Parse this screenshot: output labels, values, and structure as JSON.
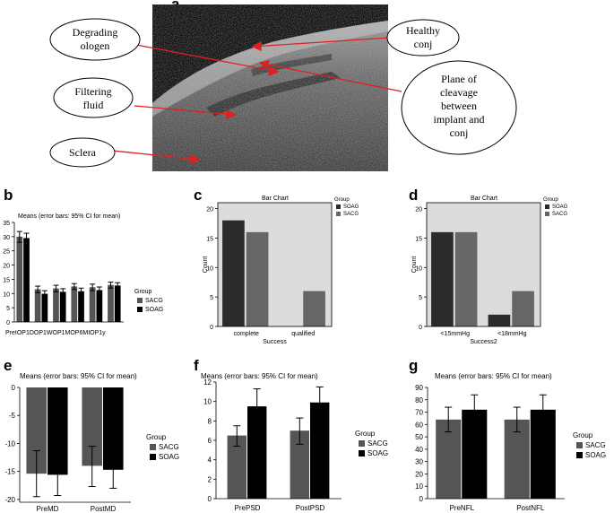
{
  "figure": {
    "panel_letters": [
      "a",
      "b",
      "c",
      "d",
      "e",
      "f",
      "g"
    ],
    "image_labels": {
      "degrading_collagen": [
        "Degrading",
        "ologen"
      ],
      "filtering_fluid": [
        "Filtering",
        "fluid"
      ],
      "sclera": [
        "Sclera"
      ],
      "healthy_conj": [
        "Healthy",
        "conj"
      ],
      "plane_of_cleavage": [
        "Plane of",
        "cleavage",
        "between",
        "implant and",
        "conj"
      ]
    }
  },
  "colors": {
    "SACG": "#555555",
    "SOAG": "#000000",
    "SOAG_spss": "#2b2b2b",
    "SACG_spss": "#666666",
    "spss_plot_bg": "#dcdcdc",
    "callout_arrow": "#e02020"
  },
  "chart_data": [
    {
      "panel": "b",
      "type": "bar",
      "title": "Means  (error bars: 95% CI for mean)",
      "categories": [
        "PreIOP",
        "IOP1D",
        "IOP1W",
        "IOP1M",
        "IOP6M",
        "IOP1y"
      ],
      "category_label_text": "PreIOP1DOP1WOP1MOP6MIOP1y",
      "series": [
        {
          "name": "SACG",
          "values": [
            30,
            11.5,
            11.8,
            12.5,
            12.2,
            13.0
          ],
          "ci": [
            [
              28.0,
              31.8
            ],
            [
              10.3,
              12.6
            ],
            [
              10.6,
              12.9
            ],
            [
              11.4,
              13.5
            ],
            [
              11.0,
              13.3
            ],
            [
              11.9,
              14.0
            ]
          ]
        },
        {
          "name": "SOAG",
          "values": [
            29.5,
            9.9,
            10.6,
            10.8,
            11.2,
            12.8
          ],
          "ci": [
            [
              27.6,
              31.2
            ],
            [
              8.7,
              11.0
            ],
            [
              9.4,
              11.7
            ],
            [
              9.6,
              11.9
            ],
            [
              10.0,
              12.3
            ],
            [
              11.7,
              13.8
            ]
          ]
        }
      ],
      "yticks": [
        0,
        5,
        10,
        15,
        20,
        25,
        30,
        35
      ],
      "ylim": [
        0,
        35
      ],
      "legend_title": "Group",
      "legend": [
        "SACG",
        "SOAG"
      ]
    },
    {
      "panel": "c",
      "type": "bar",
      "title": "Bar Chart",
      "categories": [
        "complete",
        "qualified"
      ],
      "series": [
        {
          "name": "SOAG",
          "values": [
            18,
            0
          ]
        },
        {
          "name": "SACG",
          "values": [
            16,
            6
          ]
        }
      ],
      "xlabel": "Success",
      "ylabel": "Count",
      "yticks": [
        0,
        5,
        10,
        15,
        20
      ],
      "ylim": [
        0,
        21
      ],
      "legend_title": "Group",
      "legend": [
        "SOAG",
        "SACG"
      ]
    },
    {
      "panel": "d",
      "type": "bar",
      "title": "Bar Chart",
      "categories": [
        "<15mmHg",
        "<18mmHg"
      ],
      "series": [
        {
          "name": "SOAG",
          "values": [
            16,
            2
          ]
        },
        {
          "name": "SACG",
          "values": [
            16,
            6
          ]
        }
      ],
      "xlabel": "Success2",
      "ylabel": "Count",
      "yticks": [
        0,
        5,
        10,
        15,
        20
      ],
      "ylim": [
        0,
        21
      ],
      "legend_title": "Group",
      "legend": [
        "SOAG",
        "SACG"
      ]
    },
    {
      "panel": "e",
      "type": "bar",
      "title": "Means  (error bars: 95% CI for mean)",
      "categories": [
        "PreMD",
        "PostMD"
      ],
      "series": [
        {
          "name": "SACG",
          "values": [
            -15.4,
            -14.0
          ],
          "ci": [
            [
              -19.5,
              -11.3
            ],
            [
              -17.7,
              -10.5
            ]
          ]
        },
        {
          "name": "SOAG",
          "values": [
            -15.6,
            -14.7
          ],
          "ci": [
            [
              -19.3,
              -12.0
            ],
            [
              -18.0,
              -11.5
            ]
          ]
        }
      ],
      "yticks": [
        0,
        -5,
        -10,
        -15,
        -20
      ],
      "ylim": [
        -20.5,
        0
      ],
      "legend_title": "Group",
      "legend": [
        "SACG",
        "SOAG"
      ]
    },
    {
      "panel": "f",
      "type": "bar",
      "title": "Means  (error bars: 95% CI for mean)",
      "categories": [
        "PrePSD",
        "PostPSD"
      ],
      "series": [
        {
          "name": "SACG",
          "values": [
            6.5,
            7.0
          ],
          "ci": [
            [
              5.4,
              7.5
            ],
            [
              5.6,
              8.3
            ]
          ]
        },
        {
          "name": "SOAG",
          "values": [
            9.5,
            9.9
          ],
          "ci": [
            [
              7.7,
              11.3
            ],
            [
              8.3,
              11.5
            ]
          ]
        }
      ],
      "yticks": [
        0,
        2,
        4,
        6,
        8,
        10,
        12
      ],
      "ylim": [
        0,
        12
      ],
      "legend_title": "Group",
      "legend": [
        "SACG",
        "SOAG"
      ]
    },
    {
      "panel": "g",
      "type": "bar",
      "title": "Means  (error bars: 95% CI for mean)",
      "categories": [
        "PreNFL",
        "PostNFL"
      ],
      "series": [
        {
          "name": "SACG",
          "values": [
            64,
            64
          ],
          "ci": [
            [
              54,
              74
            ],
            [
              54,
              74
            ]
          ]
        },
        {
          "name": "SOAG",
          "values": [
            72,
            72
          ],
          "ci": [
            [
              60,
              84
            ],
            [
              60,
              84
            ]
          ]
        }
      ],
      "yticks": [
        0,
        10,
        20,
        30,
        40,
        50,
        60,
        70,
        80,
        90
      ],
      "ylim": [
        0,
        90
      ],
      "legend_title": "Group",
      "legend": [
        "SACG",
        "SOAG"
      ]
    }
  ]
}
